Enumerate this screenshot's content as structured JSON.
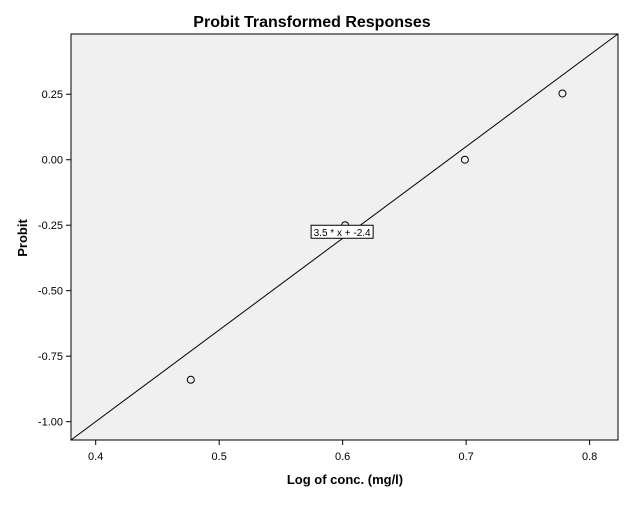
{
  "chart_data": {
    "type": "scatter",
    "title": "Probit Transformed Responses",
    "xlabel": "Log of conc. (mg/l)",
    "ylabel": "Probit",
    "xlim": [
      0.38,
      0.823
    ],
    "ylim": [
      -1.07,
      0.48
    ],
    "x_ticks": [
      0.4,
      0.5,
      0.6,
      0.7,
      0.8
    ],
    "x_tick_labels": [
      "0.4",
      "0.5",
      "0.6",
      "0.7",
      "0.8"
    ],
    "y_ticks": [
      0.25,
      0.0,
      -0.25,
      -0.5,
      -0.75,
      -1.0
    ],
    "y_tick_labels": [
      "0.25",
      "0.00",
      "-0.25",
      "-0.50",
      "-0.75",
      "-1.00"
    ],
    "points": [
      {
        "x": 0.477,
        "y": -0.84
      },
      {
        "x": 0.602,
        "y": -0.25
      },
      {
        "x": 0.699,
        "y": 0.0
      },
      {
        "x": 0.778,
        "y": 0.253
      }
    ],
    "fit_line": {
      "slope": 3.5,
      "intercept": -2.4,
      "label": "3.5 * x + -2.4",
      "label_at": {
        "x": 0.602,
        "y": -0.275
      }
    },
    "grid": false,
    "colors": {
      "plot_background": "#f0f0f0",
      "axis": "#000000",
      "line": "#000000",
      "marker_stroke": "#000000",
      "label_box": "#ffffff"
    }
  }
}
